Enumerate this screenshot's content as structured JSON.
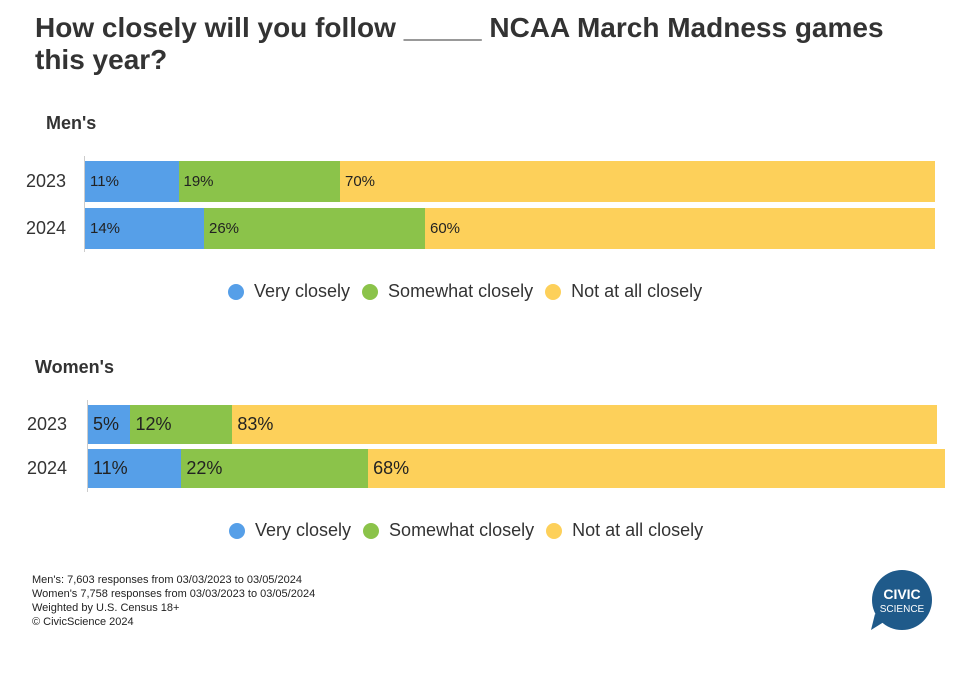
{
  "title": "How closely will you follow _____ NCAA March Madness games this year?",
  "chart_data": [
    {
      "type": "bar",
      "stacked": true,
      "orientation": "horizontal",
      "title": "Men's",
      "categories": [
        "2023",
        "2024"
      ],
      "series": [
        {
          "name": "Very closely",
          "color": "#569fe8",
          "values": [
            11,
            14
          ],
          "labels": [
            "11%",
            "14%"
          ]
        },
        {
          "name": "Somewhat closely",
          "color": "#8bc34a",
          "values": [
            19,
            26
          ],
          "labels": [
            "19%",
            "26%"
          ]
        },
        {
          "name": "Not at all closely",
          "color": "#fdd05a",
          "values": [
            70,
            60
          ],
          "labels": [
            "70%",
            "60%"
          ]
        }
      ]
    },
    {
      "type": "bar",
      "stacked": true,
      "orientation": "horizontal",
      "title": "Women's",
      "categories": [
        "2023",
        "2024"
      ],
      "series": [
        {
          "name": "Very closely",
          "color": "#569fe8",
          "values": [
            5,
            11
          ],
          "labels": [
            "5%",
            "11%"
          ]
        },
        {
          "name": "Somewhat closely",
          "color": "#8bc34a",
          "values": [
            12,
            22
          ],
          "labels": [
            "12%",
            "22%"
          ]
        },
        {
          "name": "Not at all closely",
          "color": "#fdd05a",
          "values": [
            83,
            68
          ],
          "labels": [
            "83%",
            "68%"
          ]
        }
      ]
    }
  ],
  "footer": {
    "line1": "Men's: 7,603 responses from 03/03/2023 to 03/05/2024",
    "line2": "Women's 7,758 responses from 03/03/2023 to 03/05/2024",
    "line3": "Weighted by U.S. Census 18+",
    "line4": "© CivicScience 2024"
  },
  "logo": {
    "line1": "CIVIC",
    "line2": "SCIENCE",
    "color": "#1f5a8a"
  }
}
